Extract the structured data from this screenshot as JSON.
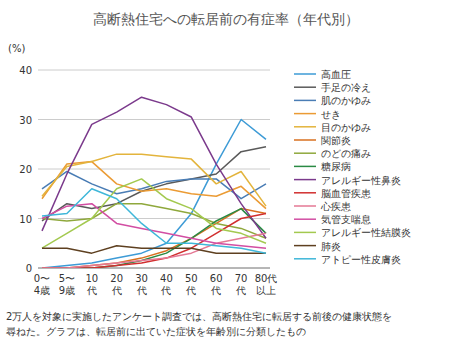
{
  "chart_data": {
    "type": "line",
    "title": "高断熱住宅への転居前の有症率（年代別）",
    "y_label": "(%)",
    "annotations": [
      "2万人を対象に実施したアンケート調査では、高断熱住宅に転居する前後の健康状態を",
      "尋ねた。グラフは、転居前に出ていた症状を年齢別に分類したもの"
    ],
    "categories": [
      "0〜4歳",
      "5〜9歳",
      "10代",
      "20代",
      "30代",
      "40代",
      "50代",
      "60代",
      "70代",
      "80代以上"
    ],
    "ylim": [
      0,
      40
    ],
    "yticks": [
      0,
      10,
      20,
      30,
      40
    ],
    "grid": true,
    "legend": "right",
    "series": [
      {
        "name": "高血圧",
        "color": "#3d9bd6",
        "values": [
          0,
          0.5,
          1,
          2,
          3,
          5,
          11,
          21,
          30,
          26
        ]
      },
      {
        "name": "手足の冷え",
        "color": "#5a5a5a",
        "values": [
          9.5,
          13,
          12,
          13,
          15.5,
          17,
          18,
          19,
          23.5,
          24.5
        ]
      },
      {
        "name": "肌のかゆみ",
        "color": "#4a7db5",
        "values": [
          16,
          19.5,
          17,
          15,
          16,
          17.5,
          18,
          18,
          14,
          17
        ]
      },
      {
        "name": "せき",
        "color": "#eb9b34",
        "values": [
          14,
          21,
          21.5,
          17,
          15.5,
          16,
          15,
          14.5,
          16.5,
          12
        ]
      },
      {
        "name": "目のかゆみ",
        "color": "#e3b43c",
        "values": [
          14.5,
          20.5,
          21.5,
          23,
          23,
          22.5,
          22,
          17,
          19.5,
          12.5
        ]
      },
      {
        "name": "関節炎",
        "color": "#d9701f",
        "values": [
          0,
          0,
          0.5,
          1,
          2,
          3.5,
          6,
          9,
          12,
          11
        ]
      },
      {
        "name": "のどの痛み",
        "color": "#8fa83c",
        "values": [
          10,
          9.5,
          10,
          13,
          13,
          12,
          11,
          9,
          8,
          6
        ]
      },
      {
        "name": "糖尿病",
        "color": "#2a8a44",
        "values": [
          0,
          0,
          0,
          0.5,
          1.5,
          3,
          6,
          9.5,
          12,
          7
        ]
      },
      {
        "name": "アレルギー性鼻炎",
        "color": "#7b3a8c",
        "values": [
          7.5,
          19,
          29,
          31.5,
          34.5,
          33,
          30.5,
          21,
          13,
          6
        ]
      },
      {
        "name": "脳血管疾患",
        "color": "#d12f2f",
        "values": [
          0,
          0,
          0,
          0.5,
          1,
          2,
          4,
          7,
          10,
          11
        ]
      },
      {
        "name": "心疾患",
        "color": "#e57995",
        "values": [
          0,
          0,
          0.5,
          1,
          1.5,
          2,
          3,
          5,
          6,
          7
        ]
      },
      {
        "name": "気管支喘息",
        "color": "#d24ea3",
        "values": [
          10,
          12.5,
          13,
          9,
          8,
          7,
          6,
          5,
          4.5,
          4
        ]
      },
      {
        "name": "アレルギー性結膜炎",
        "color": "#a3c94f",
        "values": [
          4,
          7,
          10,
          16,
          18,
          14,
          12,
          8,
          7,
          5
        ]
      },
      {
        "name": "肺炎",
        "color": "#5e4020",
        "values": [
          4,
          4,
          3,
          4.5,
          4,
          4,
          4,
          3,
          3,
          3
        ]
      },
      {
        "name": "アトピー性皮膚炎",
        "color": "#3fb7d9",
        "values": [
          10.5,
          11,
          16,
          14,
          9,
          5,
          5,
          4.5,
          4,
          3
        ]
      }
    ]
  }
}
